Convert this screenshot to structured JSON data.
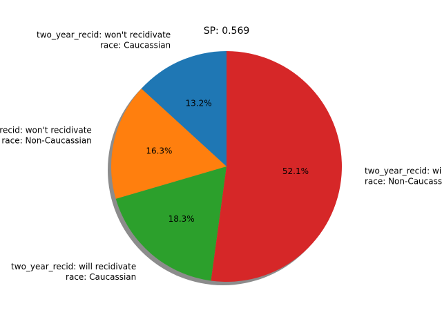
{
  "chart_data": {
    "type": "pie",
    "title": "SP: 0.569",
    "slices": [
      {
        "label_line1": "two_year_recid: won't recidivate",
        "label_line2": "race: Caucassian",
        "value": 13.2,
        "pct_text": "13.2%",
        "color": "#1f77b4"
      },
      {
        "label_line1": "two_year_recid: won't recidivate",
        "label_line2": "race: Non-Caucassian",
        "value": 16.3,
        "pct_text": "16.3%",
        "color": "#ff7f0e"
      },
      {
        "label_line1": "two_year_recid: will recidivate",
        "label_line2": "race: Caucassian",
        "value": 18.3,
        "pct_text": "18.3%",
        "color": "#2ca02c"
      },
      {
        "label_line1": "two_year_recid: will recidivate",
        "label_line2": "race: Non-Caucassian",
        "value": 52.1,
        "pct_text": "52.1%",
        "color": "#d62728"
      }
    ],
    "start_angle": 90,
    "shadow": true,
    "legend": "none"
  }
}
